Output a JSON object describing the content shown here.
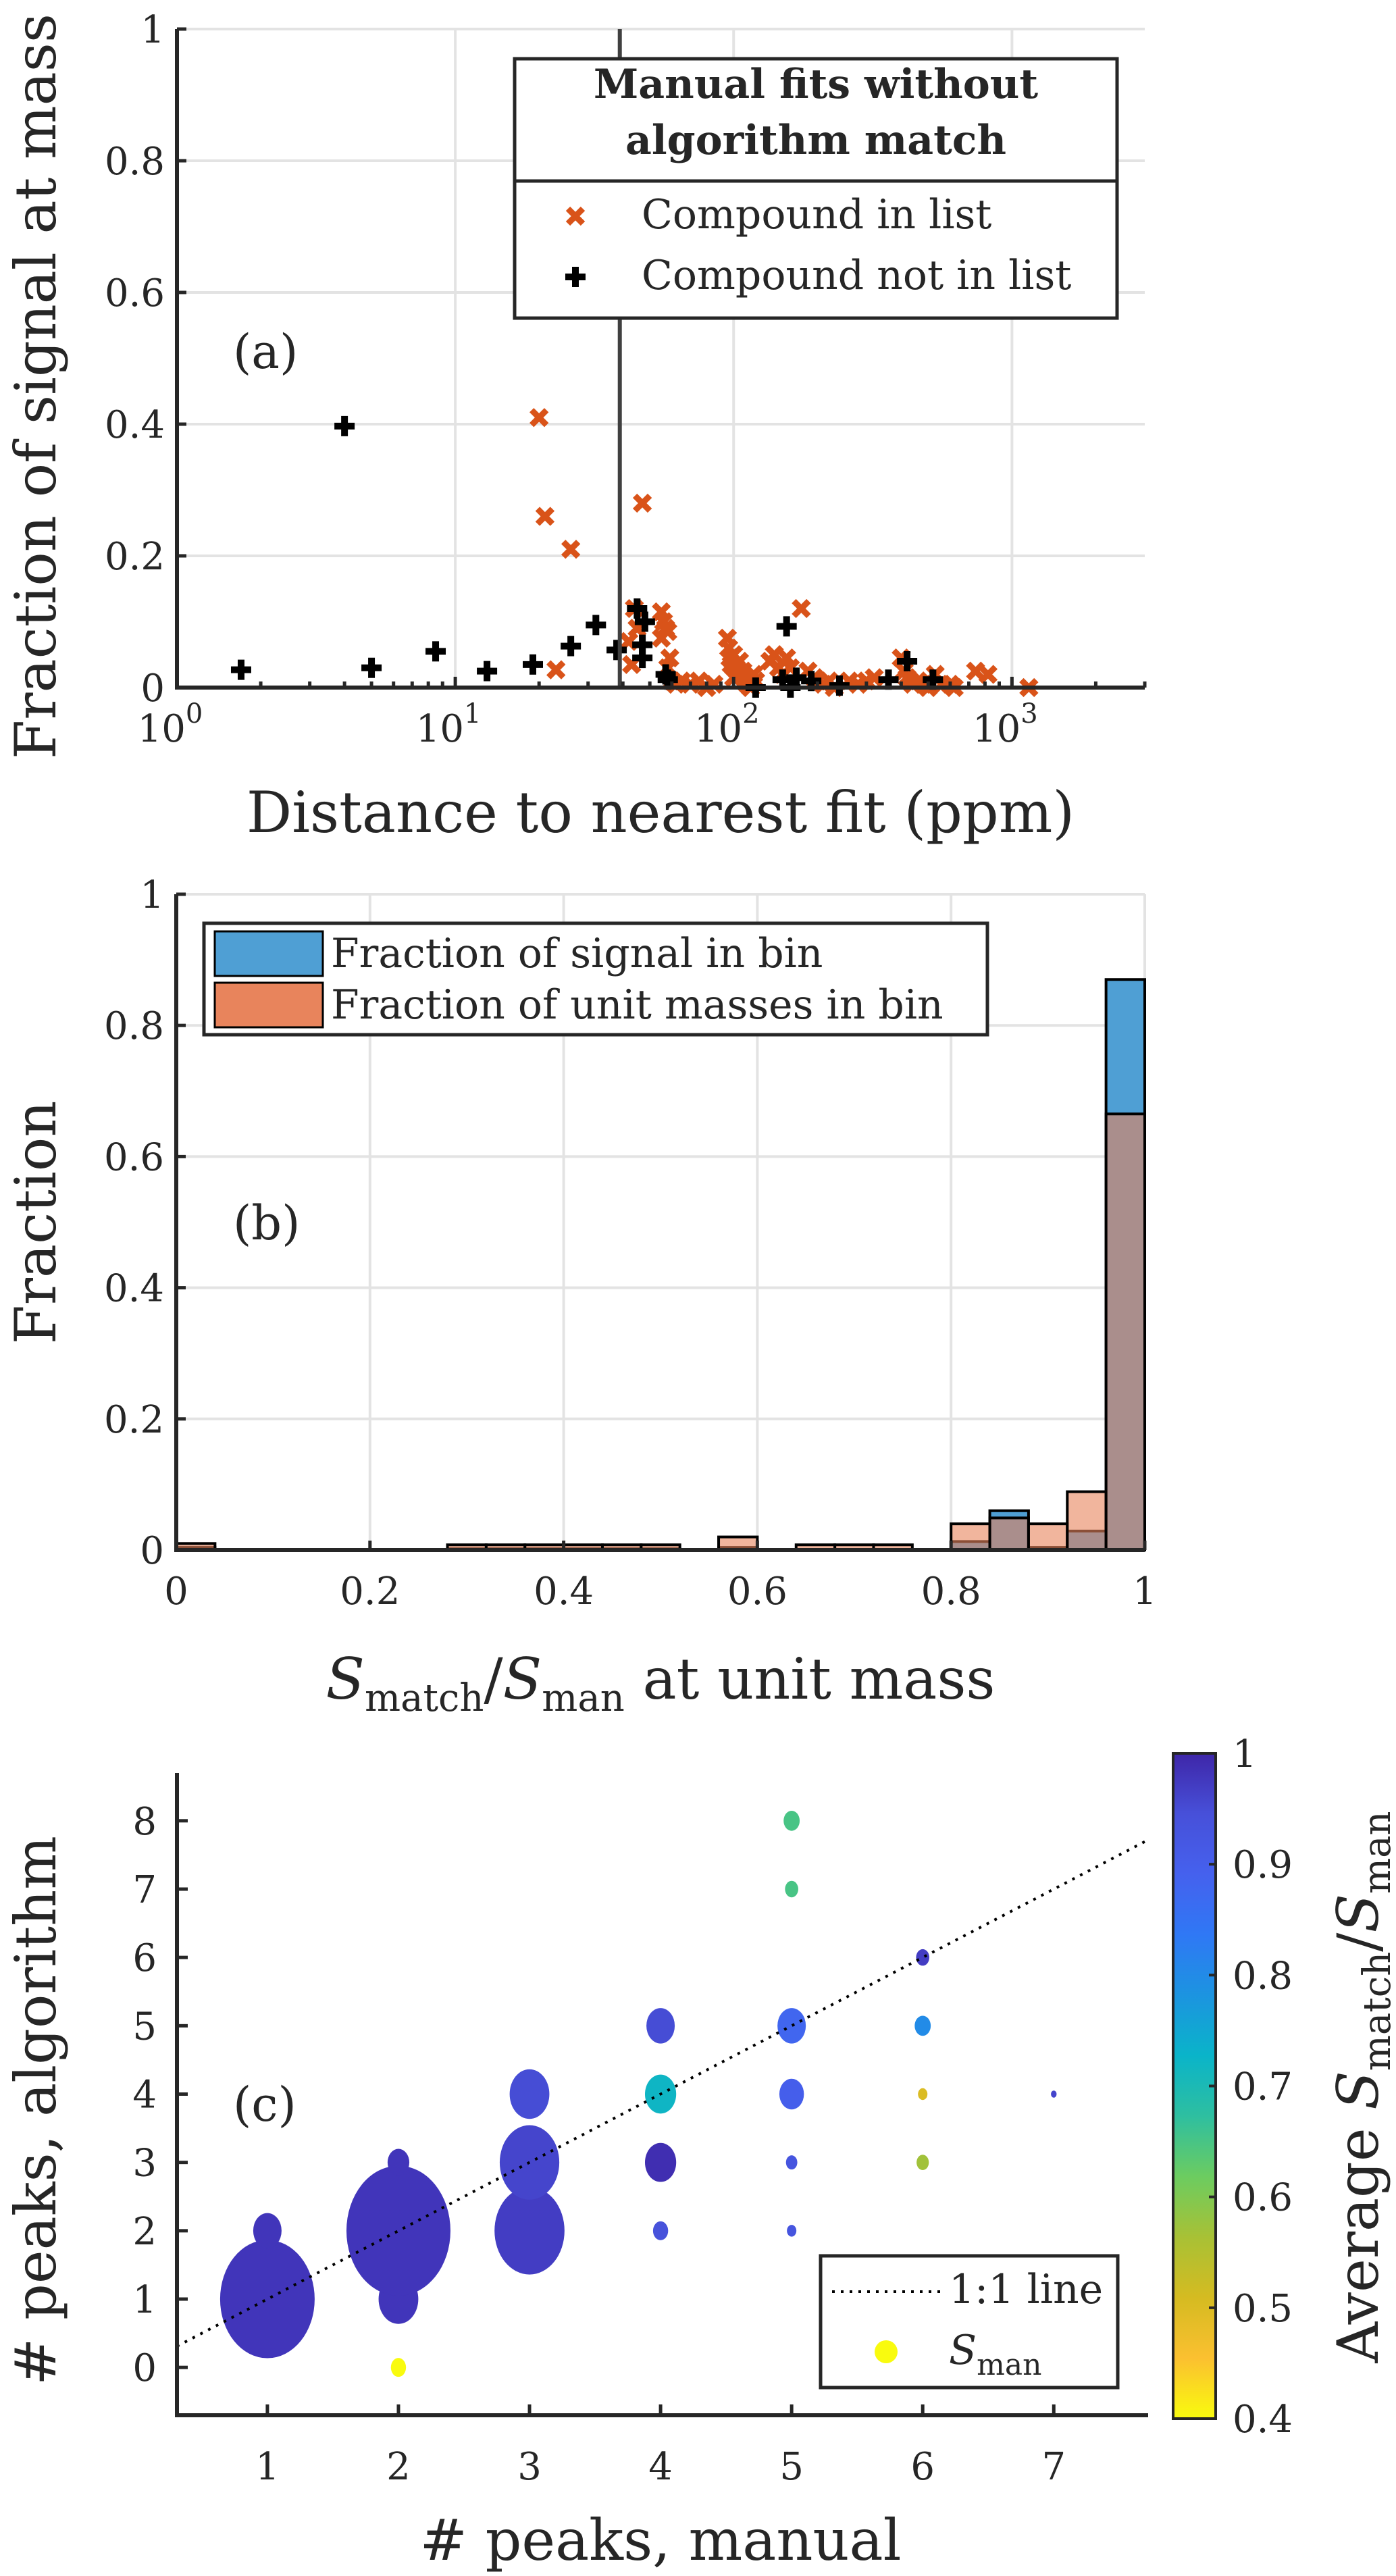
{
  "figure": {
    "panels": [
      "(a)",
      "(b)",
      "(c)"
    ]
  },
  "chart_data": [
    {
      "id": "a",
      "type": "scatter",
      "panel_label": "(a)",
      "xlabel": "Distance to nearest fit (ppm)",
      "ylabel": "Fraction of signal at mass",
      "xscale": "log",
      "xlim": [
        1,
        3000
      ],
      "ylim": [
        0,
        1
      ],
      "xticks": [
        1,
        10,
        100,
        1000
      ],
      "xtick_labels": [
        {
          "base": "10",
          "exp": "0"
        },
        {
          "base": "10",
          "exp": "1"
        },
        {
          "base": "10",
          "exp": "2"
        },
        {
          "base": "10",
          "exp": "3"
        }
      ],
      "yticks": [
        0,
        0.2,
        0.4,
        0.6,
        0.8,
        1
      ],
      "ytick_labels": [
        "0",
        "0.2",
        "0.4",
        "0.6",
        "0.8",
        "1"
      ],
      "grid": true,
      "vertical_line_x": 39,
      "legend": {
        "title_lines": [
          "Manual fits without",
          "algorithm match"
        ],
        "placement": "top-right",
        "entries": [
          "Compound in list",
          "Compound not in list"
        ]
      },
      "series": [
        {
          "name": "Compound in list",
          "marker": "x",
          "color": "#d95319",
          "points": [
            [
              20,
              0.41
            ],
            [
              21,
              0.26
            ],
            [
              26,
              0.21
            ],
            [
              23,
              0.027
            ],
            [
              47,
              0.28
            ],
            [
              42,
              0.07
            ],
            [
              43,
              0.035
            ],
            [
              45,
              0.09
            ],
            [
              44,
              0.12
            ],
            [
              55,
              0.115
            ],
            [
              56,
              0.1
            ],
            [
              57,
              0.09
            ],
            [
              58,
              0.085
            ],
            [
              55,
              0.075
            ],
            [
              59,
              0.045
            ],
            [
              58,
              0.03
            ],
            [
              60,
              0.01
            ],
            [
              62,
              0.005
            ],
            [
              65,
              0.01
            ],
            [
              70,
              0.005
            ],
            [
              75,
              0.01
            ],
            [
              80,
              0.0
            ],
            [
              85,
              0.005
            ],
            [
              95,
              0.075
            ],
            [
              96,
              0.06
            ],
            [
              97,
              0.045
            ],
            [
              100,
              0.05
            ],
            [
              98,
              0.035
            ],
            [
              102,
              0.03
            ],
            [
              104,
              0.02
            ],
            [
              105,
              0.04
            ],
            [
              108,
              0.025
            ],
            [
              100,
              0.015
            ],
            [
              110,
              0.01
            ],
            [
              112,
              0.005
            ],
            [
              115,
              0.0
            ],
            [
              118,
              0.02
            ],
            [
              120,
              0.01
            ],
            [
              135,
              0.04
            ],
            [
              140,
              0.05
            ],
            [
              145,
              0.03
            ],
            [
              150,
              0.02
            ],
            [
              155,
              0.045
            ],
            [
              160,
              0.03
            ],
            [
              175,
              0.12
            ],
            [
              185,
              0.025
            ],
            [
              195,
              0.015
            ],
            [
              200,
              0.01
            ],
            [
              210,
              0.005
            ],
            [
              220,
              0.01
            ],
            [
              230,
              0.0
            ],
            [
              260,
              0.01
            ],
            [
              280,
              0.005
            ],
            [
              300,
              0.01
            ],
            [
              320,
              0.015
            ],
            [
              400,
              0.045
            ],
            [
              410,
              0.025
            ],
            [
              420,
              0.015
            ],
            [
              430,
              0.01
            ],
            [
              440,
              0.005
            ],
            [
              460,
              0.01
            ],
            [
              480,
              0.005
            ],
            [
              500,
              0.0
            ],
            [
              530,
              0.02
            ],
            [
              560,
              0.005
            ],
            [
              600,
              0.005
            ],
            [
              620,
              0.0
            ],
            [
              740,
              0.025
            ],
            [
              820,
              0.02
            ],
            [
              1150,
              0.0
            ]
          ]
        },
        {
          "name": "Compound not in list",
          "marker": "+",
          "color": "#000000",
          "points": [
            [
              1.7,
              0.027
            ],
            [
              4.0,
              0.397
            ],
            [
              5.0,
              0.03
            ],
            [
              8.5,
              0.055
            ],
            [
              13,
              0.025
            ],
            [
              19,
              0.035
            ],
            [
              26,
              0.063
            ],
            [
              32,
              0.095
            ],
            [
              38,
              0.057
            ],
            [
              45,
              0.12
            ],
            [
              48,
              0.1
            ],
            [
              47,
              0.065
            ],
            [
              47,
              0.045
            ],
            [
              57,
              0.02
            ],
            [
              58,
              0.012
            ],
            [
              120,
              0.0
            ],
            [
              150,
              0.012
            ],
            [
              155,
              0.093
            ],
            [
              160,
              0.0
            ],
            [
              168,
              0.015
            ],
            [
              190,
              0.01
            ],
            [
              240,
              0.003
            ],
            [
              360,
              0.012
            ],
            [
              420,
              0.04
            ],
            [
              520,
              0.012
            ]
          ]
        }
      ]
    },
    {
      "id": "b",
      "type": "bar",
      "panel_label": "(b)",
      "xlabel_parts": {
        "s1": "S",
        "sub1": "match",
        "slash": "/",
        "s2": "S",
        "sub2": "man",
        "rest": " at unit mass"
      },
      "ylabel": "Fraction",
      "xlim": [
        0,
        1
      ],
      "ylim": [
        0,
        1
      ],
      "xticks": [
        0,
        0.2,
        0.4,
        0.6,
        0.8,
        1
      ],
      "xtick_labels": [
        "0",
        "0.2",
        "0.4",
        "0.6",
        "0.8",
        "1"
      ],
      "yticks": [
        0,
        0.2,
        0.4,
        0.6,
        0.8,
        1
      ],
      "ytick_labels": [
        "0",
        "0.2",
        "0.4",
        "0.6",
        "0.8",
        "1"
      ],
      "grid": true,
      "bin_width": 0.04,
      "bin_edges_start": 0,
      "legend": {
        "placement": "top-left",
        "entries": [
          "Fraction of signal in bin",
          "Fraction of unit masses in bin"
        ]
      },
      "series": [
        {
          "name": "Fraction of signal in bin",
          "color": "#4f9fd4",
          "values": [
            0.004,
            0,
            0,
            0,
            0,
            0,
            0,
            0.002,
            0.002,
            0.002,
            0.002,
            0.002,
            0.002,
            0,
            0.004,
            0,
            0.001,
            0.001,
            0.001,
            0,
            0.013,
            0.06,
            0.004,
            0.029,
            0.87
          ]
        },
        {
          "name": "Fraction of unit masses in bin",
          "color": "#e8845c",
          "values": [
            0.01,
            0,
            0,
            0,
            0,
            0,
            0,
            0.008,
            0.008,
            0.008,
            0.008,
            0.008,
            0.008,
            0,
            0.02,
            0,
            0.008,
            0.008,
            0.008,
            0,
            0.04,
            0.049,
            0.04,
            0.089,
            0.665
          ]
        }
      ]
    },
    {
      "id": "c",
      "type": "scatter",
      "panel_label": "(c)",
      "xlabel": "# peaks, manual",
      "ylabel": "# peaks, algorithm",
      "xlim": [
        0.31,
        7.72
      ],
      "ylim": [
        -0.7,
        8.7
      ],
      "xticks": [
        1,
        2,
        3,
        4,
        5,
        6,
        7
      ],
      "xtick_labels": [
        "1",
        "2",
        "3",
        "4",
        "5",
        "6",
        "7"
      ],
      "yticks": [
        0,
        1,
        2,
        3,
        4,
        5,
        6,
        7,
        8
      ],
      "ytick_labels": [
        "0",
        "1",
        "2",
        "3",
        "4",
        "5",
        "6",
        "7",
        "8"
      ],
      "grid": false,
      "reference_line": {
        "name": "1:1 line",
        "style": "dotted",
        "slope": 1,
        "intercept": 0
      },
      "legend": {
        "placement": "bottom-right",
        "entries": [
          {
            "type": "line",
            "label": "1:1 line"
          },
          {
            "type": "marker",
            "label_main": "S",
            "label_sub": "man",
            "color": "#f9fb0e"
          }
        ]
      },
      "colorbar": {
        "label_parts": {
          "prefix": "Average ",
          "s1": "S",
          "sub1": "match",
          "slash": "/",
          "s2": "S",
          "sub2": "man"
        },
        "clim": [
          0.4,
          1
        ],
        "ticks": [
          0.4,
          0.5,
          0.6,
          0.7,
          0.8,
          0.9,
          1
        ],
        "tick_labels": [
          "0.4",
          "0.5",
          "0.6",
          "0.7",
          "0.8",
          "0.9",
          "1"
        ],
        "colormap": "parula",
        "stops": [
          "#f9fb0e",
          "#fbc030",
          "#d5bb21",
          "#a8c135",
          "#6ccc60",
          "#2ebfa0",
          "#0ab4c9",
          "#1c94e0",
          "#2f78f5",
          "#4561ee",
          "#4750d9",
          "#3e26a8"
        ]
      },
      "points": [
        {
          "x": 1,
          "y": 1,
          "size": 1.0,
          "value": 0.98
        },
        {
          "x": 1,
          "y": 2,
          "size": 0.3,
          "value": 0.98
        },
        {
          "x": 2,
          "y": 0,
          "size": 0.16,
          "value": 0.4
        },
        {
          "x": 2,
          "y": 1,
          "size": 0.42,
          "value": 0.98
        },
        {
          "x": 2,
          "y": 2,
          "size": 1.1,
          "value": 0.98
        },
        {
          "x": 2,
          "y": 3,
          "size": 0.23,
          "value": 0.98
        },
        {
          "x": 3,
          "y": 2,
          "size": 0.74,
          "value": 0.97
        },
        {
          "x": 3,
          "y": 3,
          "size": 0.63,
          "value": 0.96
        },
        {
          "x": 3,
          "y": 4,
          "size": 0.42,
          "value": 0.95
        },
        {
          "x": 4,
          "y": 2,
          "size": 0.16,
          "value": 0.94
        },
        {
          "x": 4,
          "y": 3,
          "size": 0.33,
          "value": 0.99
        },
        {
          "x": 4,
          "y": 4,
          "size": 0.33,
          "value": 0.72
        },
        {
          "x": 4,
          "y": 5,
          "size": 0.3,
          "value": 0.95
        },
        {
          "x": 5,
          "y": 2,
          "size": 0.1,
          "value": 0.93
        },
        {
          "x": 5,
          "y": 3,
          "size": 0.12,
          "value": 0.93
        },
        {
          "x": 5,
          "y": 4,
          "size": 0.26,
          "value": 0.9
        },
        {
          "x": 5,
          "y": 5,
          "size": 0.3,
          "value": 0.88
        },
        {
          "x": 5,
          "y": 7,
          "size": 0.14,
          "value": 0.65
        },
        {
          "x": 5,
          "y": 8,
          "size": 0.17,
          "value": 0.65
        },
        {
          "x": 6,
          "y": 3,
          "size": 0.13,
          "value": 0.57
        },
        {
          "x": 6,
          "y": 4,
          "size": 0.1,
          "value": 0.5
        },
        {
          "x": 6,
          "y": 5,
          "size": 0.17,
          "value": 0.8
        },
        {
          "x": 6,
          "y": 6,
          "size": 0.14,
          "value": 0.97
        },
        {
          "x": 7,
          "y": 4,
          "size": 0.06,
          "value": 0.96
        }
      ]
    }
  ]
}
